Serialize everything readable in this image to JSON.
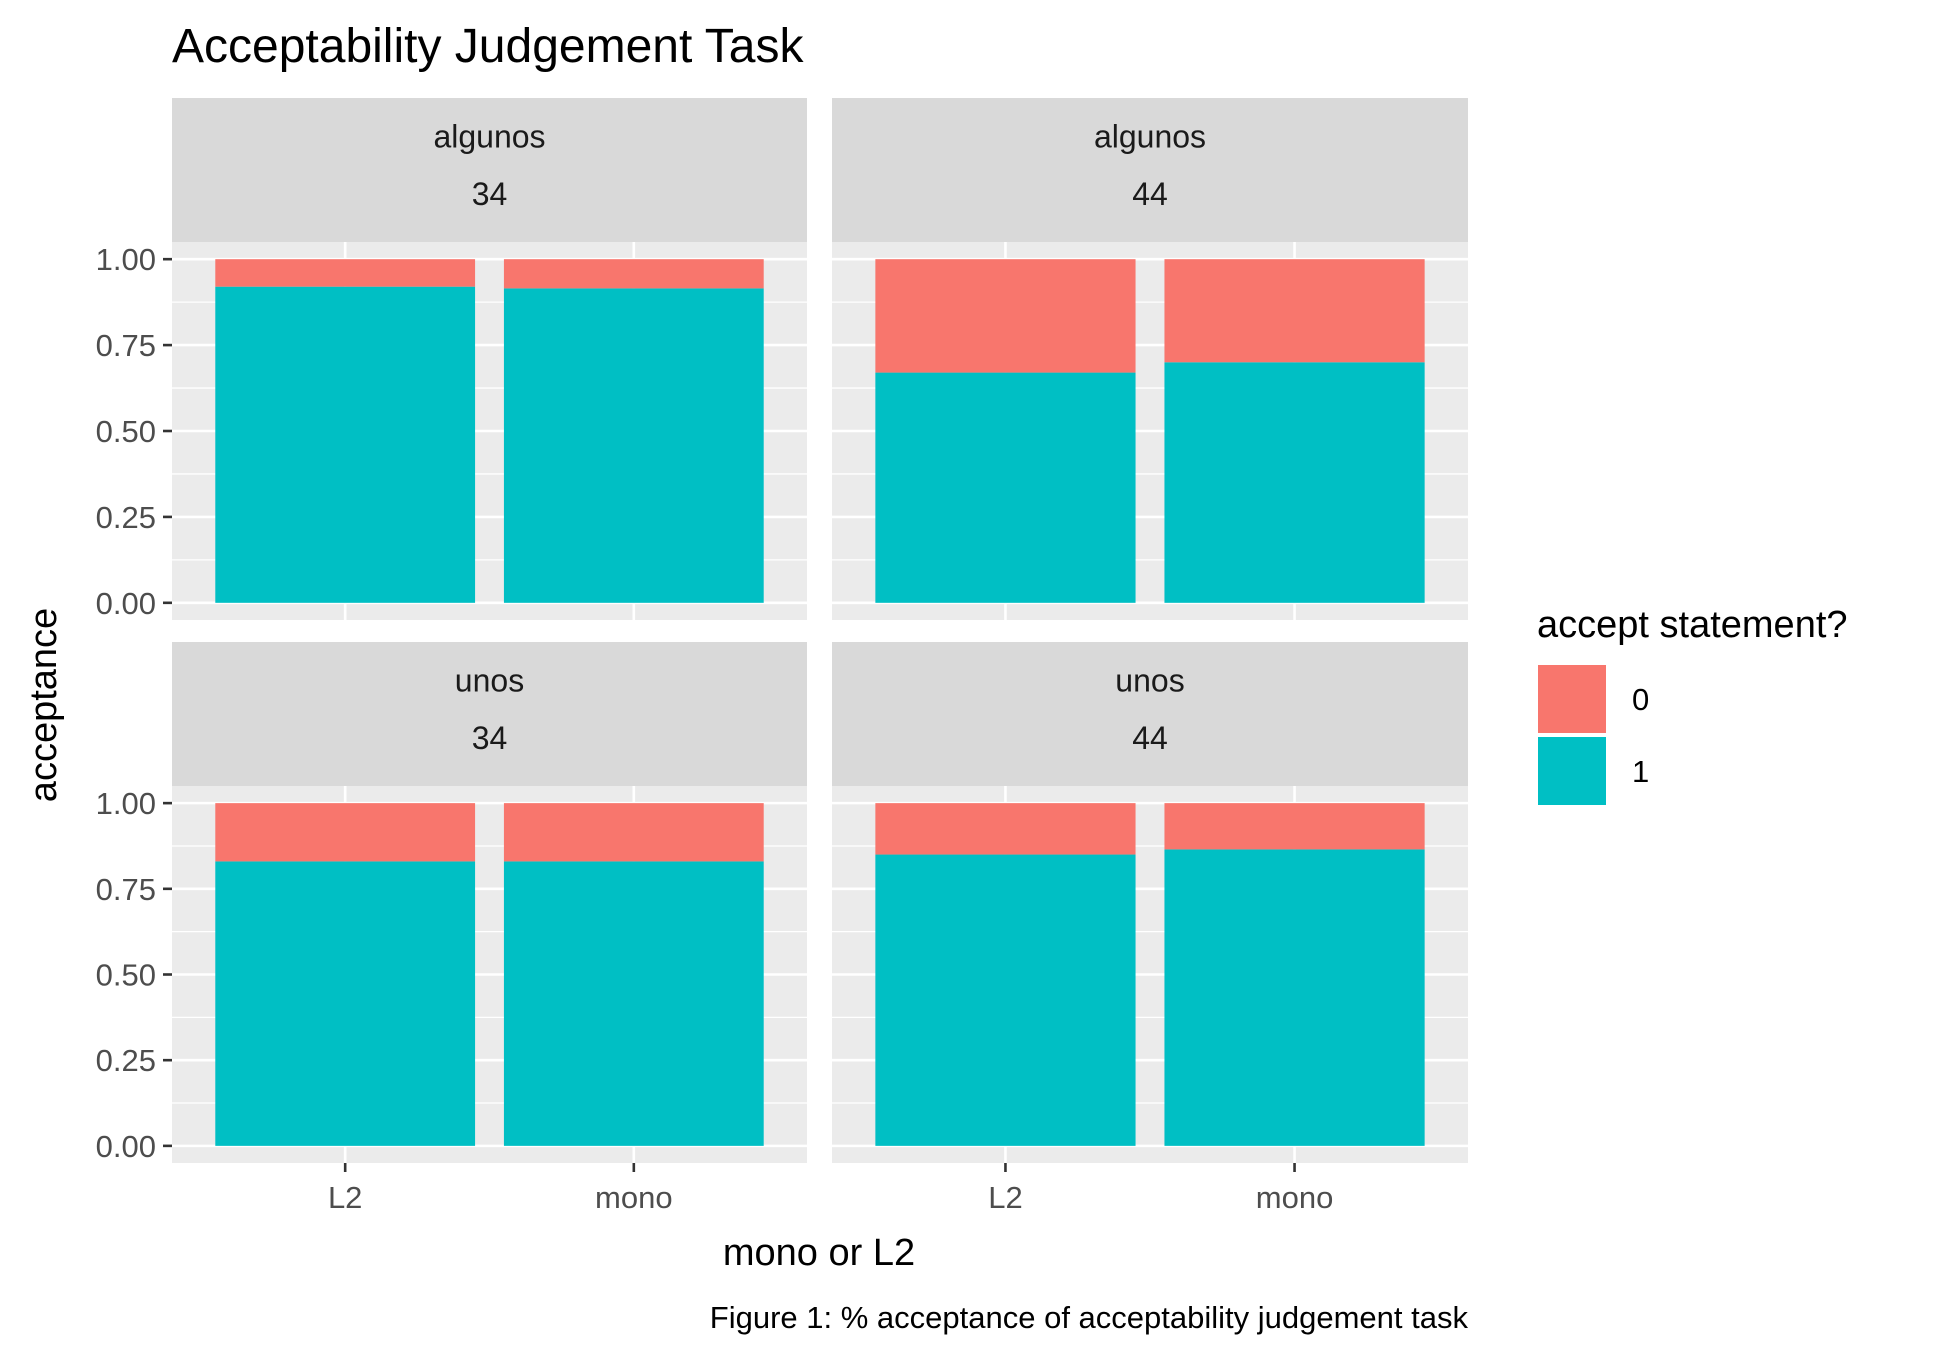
{
  "chart_data": {
    "type": "bar",
    "stacked": true,
    "title": "Acceptability Judgement Task",
    "xlabel": "mono or L2",
    "ylabel": "acceptance",
    "caption": "Figure 1: % acceptance of acceptability judgement task",
    "categories": [
      "L2",
      "mono"
    ],
    "ylim": [
      0,
      1
    ],
    "yticks": [
      "0.00",
      "0.25",
      "0.50",
      "0.75",
      "1.00"
    ],
    "legend": {
      "title": "accept statement?",
      "position": "right",
      "entries": [
        {
          "label": "0",
          "color": "#F8766D"
        },
        {
          "label": "1",
          "color": "#00BFC4"
        }
      ]
    },
    "colors": {
      "0": "#F8766D",
      "1": "#00BFC4",
      "panel_bg": "#EBEBEB",
      "strip_bg": "#D9D9D9"
    },
    "grid": true,
    "panels": [
      {
        "strip": [
          "algunos",
          "34"
        ],
        "series": [
          {
            "name": "1",
            "values": [
              0.92,
              0.915
            ]
          },
          {
            "name": "0",
            "values": [
              0.08,
              0.085
            ]
          }
        ]
      },
      {
        "strip": [
          "algunos",
          "44"
        ],
        "series": [
          {
            "name": "1",
            "values": [
              0.67,
              0.7
            ]
          },
          {
            "name": "0",
            "values": [
              0.33,
              0.3
            ]
          }
        ]
      },
      {
        "strip": [
          "unos",
          "34"
        ],
        "series": [
          {
            "name": "1",
            "values": [
              0.83,
              0.83
            ]
          },
          {
            "name": "0",
            "values": [
              0.17,
              0.17
            ]
          }
        ]
      },
      {
        "strip": [
          "unos",
          "44"
        ],
        "series": [
          {
            "name": "1",
            "values": [
              0.85,
              0.865
            ]
          },
          {
            "name": "0",
            "values": [
              0.15,
              0.135
            ]
          }
        ]
      }
    ]
  }
}
